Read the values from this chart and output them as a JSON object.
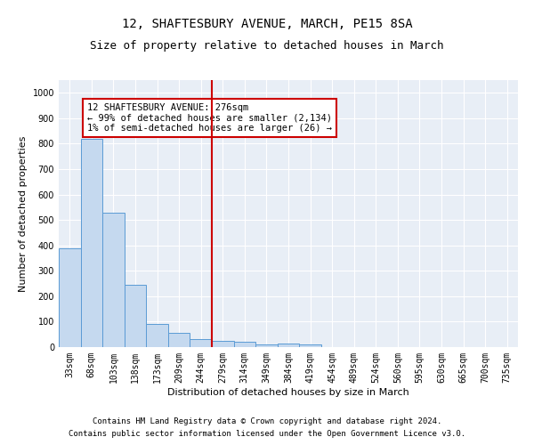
{
  "title": "12, SHAFTESBURY AVENUE, MARCH, PE15 8SA",
  "subtitle": "Size of property relative to detached houses in March",
  "xlabel": "Distribution of detached houses by size in March",
  "ylabel": "Number of detached properties",
  "footnote1": "Contains HM Land Registry data © Crown copyright and database right 2024.",
  "footnote2": "Contains public sector information licensed under the Open Government Licence v3.0.",
  "bin_labels": [
    "33sqm",
    "68sqm",
    "103sqm",
    "138sqm",
    "173sqm",
    "209sqm",
    "244sqm",
    "279sqm",
    "314sqm",
    "349sqm",
    "384sqm",
    "419sqm",
    "454sqm",
    "489sqm",
    "524sqm",
    "560sqm",
    "595sqm",
    "630sqm",
    "665sqm",
    "700sqm",
    "735sqm"
  ],
  "bar_values": [
    390,
    820,
    530,
    245,
    90,
    55,
    30,
    25,
    20,
    10,
    15,
    10,
    0,
    0,
    0,
    0,
    0,
    0,
    0,
    0,
    0
  ],
  "bar_color": "#c5d9ef",
  "bar_edge_color": "#5b9bd5",
  "bar_linewidth": 0.7,
  "vline_color": "#cc0000",
  "vline_x_index": 6.5,
  "annotation_line1": "12 SHAFTESBURY AVENUE: 276sqm",
  "annotation_line2": "← 99% of detached houses are smaller (2,134)",
  "annotation_line3": "1% of semi-detached houses are larger (26) →",
  "legend_box_color": "#cc0000",
  "ylim": [
    0,
    1050
  ],
  "yticks": [
    0,
    100,
    200,
    300,
    400,
    500,
    600,
    700,
    800,
    900,
    1000
  ],
  "background_color": "#e8eef6",
  "grid_color": "#ffffff",
  "title_fontsize": 10,
  "subtitle_fontsize": 9,
  "axis_label_fontsize": 8,
  "tick_fontsize": 7,
  "annotation_fontsize": 7.5,
  "footnote_fontsize": 6.5
}
